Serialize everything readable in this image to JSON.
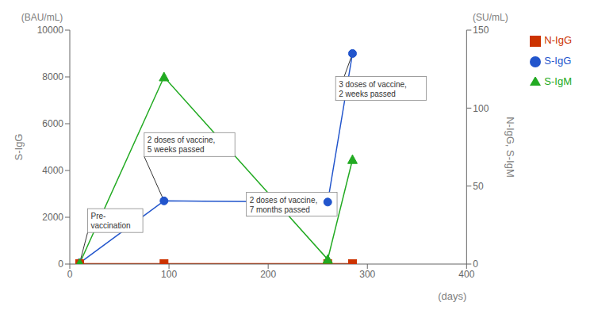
{
  "chart_data": {
    "type": "line",
    "xlabel": "(days)",
    "ylabel": "S-IgG",
    "y2label": "N-IgG, S-IgM",
    "y_unit": "(BAU/mL)",
    "y2_unit": "(SU/mL)",
    "x": [
      10,
      95,
      260,
      285
    ],
    "xlim": [
      0,
      400
    ],
    "xticks": [
      0,
      100,
      200,
      300,
      400
    ],
    "ylim": [
      0,
      10000
    ],
    "yticks": [
      0,
      2000,
      4000,
      6000,
      8000,
      10000
    ],
    "y2lim": [
      0,
      150
    ],
    "y2ticks": [
      0,
      50,
      100,
      150
    ],
    "series": [
      {
        "name": "S-IgG",
        "color": "#2255CC",
        "marker": "circle",
        "values": [
          50,
          2700,
          2650,
          9000
        ]
      },
      {
        "name": "N-IgG",
        "color": "#CC3300",
        "marker": "square",
        "axis": "y2",
        "values": [
          0.3,
          0.3,
          0.3,
          0.3
        ]
      },
      {
        "name": "S-IgM",
        "color": "#22AA22",
        "marker": "triangle",
        "axis": "y2",
        "values": [
          0.5,
          120,
          3,
          67
        ]
      }
    ],
    "annotations": [
      {
        "text": "Pre-\nvaccination",
        "x": 10,
        "y": 50,
        "text_x": 18,
        "text_y": 1350
      },
      {
        "text": "2 doses of vaccine,\n5 weeks passed",
        "x": 95,
        "y": 2700,
        "text_x": 75,
        "text_y": 4600
      },
      {
        "text": "2 doses of vaccine,\n7 months passed",
        "x": 260,
        "y": 2650,
        "text_x": 178,
        "text_y": 2050
      },
      {
        "text": "3 doses of vaccine,\n2 weeks passed",
        "x": 285,
        "y": 9000,
        "text_x": 268,
        "text_y": 7000
      }
    ],
    "grid": false,
    "legend": "right"
  }
}
